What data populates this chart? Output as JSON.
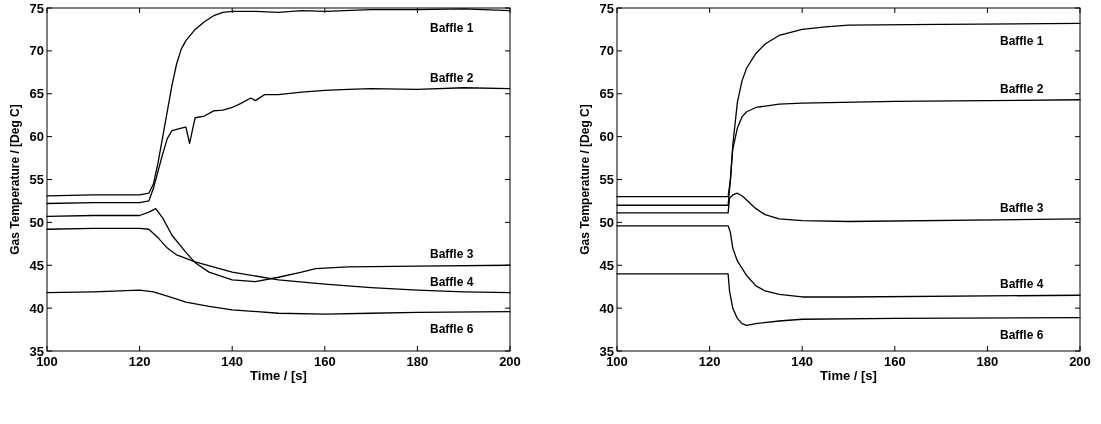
{
  "chart_data": [
    {
      "type": "line",
      "xlabel": "Time / [s]",
      "ylabel": "Gas Temperature / [Deg C]",
      "xlim": [
        100,
        200
      ],
      "ylim": [
        35,
        75
      ],
      "xticks": [
        100,
        120,
        140,
        160,
        180,
        200
      ],
      "yticks": [
        35,
        40,
        45,
        50,
        55,
        60,
        65,
        70,
        75
      ],
      "series": [
        {
          "name": "Baffle 1",
          "color": "#000000",
          "x": [
            100,
            110,
            120,
            122,
            123,
            124,
            125,
            126,
            127,
            128,
            129,
            130,
            132,
            134,
            136,
            138,
            140,
            145,
            150,
            155,
            160,
            170,
            180,
            190,
            200
          ],
          "values": [
            53.1,
            53.2,
            53.2,
            53.4,
            54.5,
            57,
            60,
            63,
            66,
            68.5,
            70.2,
            71.2,
            72.5,
            73.4,
            74.1,
            74.5,
            74.6,
            74.6,
            74.5,
            74.7,
            74.6,
            74.8,
            74.8,
            74.9,
            74.7
          ]
        },
        {
          "name": "Baffle 2",
          "color": "#000000",
          "x": [
            100,
            110,
            120,
            122,
            123,
            124,
            125,
            126,
            127,
            129,
            130,
            130.8,
            131.5,
            132,
            134,
            136,
            138,
            140,
            142,
            144,
            145,
            147,
            150,
            155,
            160,
            165,
            170,
            180,
            190,
            200
          ],
          "values": [
            52.2,
            52.3,
            52.3,
            52.5,
            54,
            56,
            58,
            59.8,
            60.7,
            61,
            61.1,
            59.2,
            61,
            62.2,
            62.4,
            63,
            63.1,
            63.4,
            63.9,
            64.5,
            64.2,
            64.9,
            64.9,
            65.2,
            65.4,
            65.5,
            65.6,
            65.5,
            65.7,
            65.6
          ]
        },
        {
          "name": "Baffle 3",
          "color": "#000000",
          "x": [
            100,
            110,
            120,
            122,
            123.5,
            125,
            127,
            130,
            132,
            135,
            140,
            145,
            150,
            155,
            158,
            165,
            180,
            200
          ],
          "values": [
            50.7,
            50.8,
            50.8,
            51.2,
            51.6,
            50.5,
            48.5,
            46.5,
            45.3,
            44.2,
            43.3,
            43.1,
            43.6,
            44.2,
            44.6,
            44.8,
            44.9,
            45
          ]
        },
        {
          "name": "Baffle 4",
          "color": "#000000",
          "x": [
            100,
            110,
            120,
            122,
            124,
            126,
            128,
            132,
            140,
            150,
            160,
            170,
            180,
            190,
            200
          ],
          "values": [
            49.2,
            49.3,
            49.3,
            49.2,
            48.2,
            47,
            46.2,
            45.4,
            44.2,
            43.3,
            42.8,
            42.4,
            42.1,
            41.9,
            41.8
          ]
        },
        {
          "name": "Baffle 6",
          "color": "#000000",
          "x": [
            100,
            110,
            120,
            123,
            126,
            130,
            135,
            140,
            150,
            160,
            170,
            180,
            200
          ],
          "values": [
            41.8,
            41.9,
            42.1,
            41.9,
            41.4,
            40.7,
            40.2,
            39.8,
            39.4,
            39.3,
            39.4,
            39.5,
            39.6
          ]
        }
      ]
    },
    {
      "type": "line",
      "xlabel": "Time / [s]",
      "ylabel": "Gas Temperature / [Deg C]",
      "xlim": [
        100,
        200
      ],
      "ylim": [
        35,
        75
      ],
      "xticks": [
        100,
        120,
        140,
        160,
        180,
        200
      ],
      "yticks": [
        35,
        40,
        45,
        50,
        55,
        60,
        65,
        70,
        75
      ],
      "series": [
        {
          "name": "Baffle 1",
          "color": "#000000",
          "x": [
            100,
            124,
            124.5,
            125,
            126,
            127,
            128,
            130,
            132,
            135,
            140,
            145,
            150,
            170,
            200
          ],
          "values": [
            53,
            53,
            55,
            59,
            64,
            66.5,
            68,
            69.7,
            70.8,
            71.8,
            72.5,
            72.8,
            73,
            73.1,
            73.2
          ]
        },
        {
          "name": "Baffle 2",
          "color": "#000000",
          "x": [
            100,
            124,
            124.5,
            125,
            126,
            127,
            128,
            130,
            135,
            140,
            160,
            200
          ],
          "values": [
            52,
            52,
            55,
            58.5,
            61,
            62.3,
            62.9,
            63.4,
            63.8,
            63.9,
            64.1,
            64.3
          ]
        },
        {
          "name": "Baffle 3",
          "color": "#000000",
          "x": [
            100,
            124,
            124.3,
            125,
            126,
            127,
            128,
            130,
            132,
            135,
            140,
            150,
            200
          ],
          "values": [
            51.1,
            51.1,
            52.8,
            53.2,
            53.4,
            53.1,
            52.6,
            51.6,
            50.9,
            50.4,
            50.2,
            50.1,
            50.4
          ]
        },
        {
          "name": "Baffle 4",
          "color": "#000000",
          "x": [
            100,
            124,
            124.5,
            125,
            126,
            128,
            130,
            132,
            135,
            140,
            150,
            200
          ],
          "values": [
            49.6,
            49.6,
            48.8,
            47,
            45.5,
            43.8,
            42.6,
            42,
            41.6,
            41.3,
            41.3,
            41.5
          ]
        },
        {
          "name": "Baffle 6",
          "color": "#000000",
          "x": [
            100,
            124,
            124.3,
            125,
            126,
            127,
            128,
            130,
            135,
            140,
            160,
            200
          ],
          "values": [
            44,
            44,
            42,
            40,
            38.8,
            38.2,
            38,
            38.2,
            38.5,
            38.7,
            38.8,
            38.9
          ]
        }
      ]
    }
  ]
}
